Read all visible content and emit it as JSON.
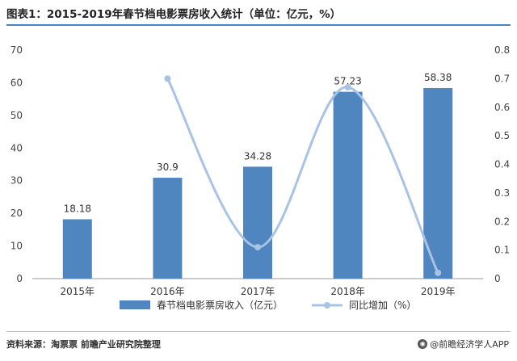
{
  "title": "图表1：2015-2019年春节档电影票房收入统计（单位：亿元，%）",
  "source": "资料来源：淘票票 前瞻产业研究院整理",
  "brand": "@前瞻经济学人APP",
  "brand_icon": "owl-logo-icon",
  "colors": {
    "bar": "#4f86c0",
    "line": "#a8c3e3",
    "divider": "#4a84c4"
  },
  "chart_data": {
    "type": "bar",
    "categories": [
      "2015年",
      "2016年",
      "2017年",
      "2018年",
      "2019年"
    ],
    "series": [
      {
        "name": "春节档电影票房收入（亿元）",
        "type": "bar",
        "axis": "left",
        "values": [
          18.18,
          30.9,
          34.28,
          57.23,
          58.38
        ],
        "labels": [
          "18.18",
          "30.9",
          "34.28",
          "57.23",
          "58.38"
        ]
      },
      {
        "name": "同比增加（%）",
        "type": "line",
        "axis": "right",
        "values": [
          null,
          0.7,
          0.11,
          0.67,
          0.02
        ]
      }
    ],
    "left_axis": {
      "ylim": [
        0,
        70
      ],
      "ticks": [
        "0",
        "10",
        "20",
        "30",
        "40",
        "50",
        "60",
        "70"
      ]
    },
    "right_axis": {
      "ylim": [
        0,
        0.8
      ],
      "ticks": [
        "0",
        "0.1",
        "0.2",
        "0.3",
        "0.4",
        "0.5",
        "0.6",
        "0.7",
        "0.8"
      ]
    },
    "grid": false,
    "legend": "bottom"
  }
}
